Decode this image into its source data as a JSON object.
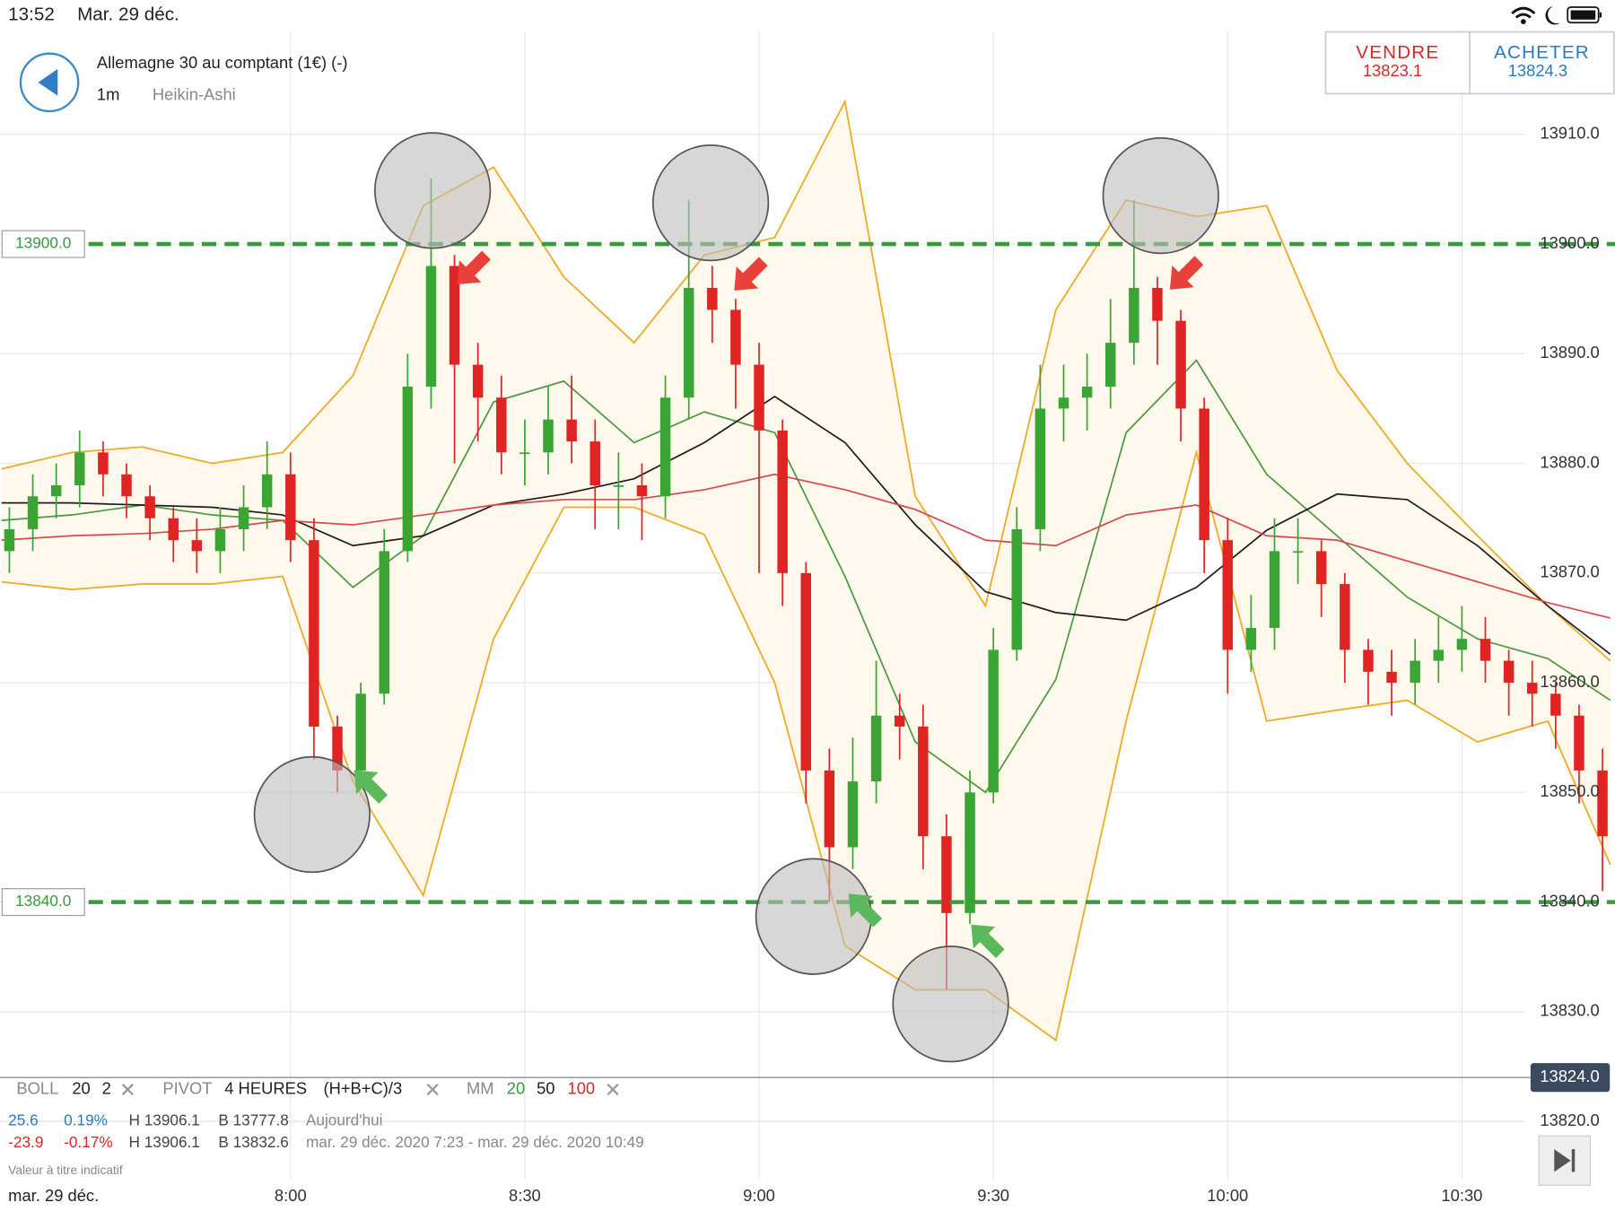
{
  "status": {
    "time": "13:52",
    "date": "Mar. 29 déc."
  },
  "header": {
    "instrument": "Allemagne 30 au comptant (1€) (-)",
    "interval": "1m",
    "chart_style": "Heikin-Ashi"
  },
  "sell": {
    "label": "VENDRE",
    "price": 13823.1
  },
  "buy": {
    "label": "ACHETER",
    "price": 13824.3
  },
  "chart": {
    "type": "candlestick",
    "x": [
      444,
      447,
      450,
      453,
      456,
      459,
      462,
      465,
      468,
      471,
      474,
      477,
      480,
      483,
      486,
      489,
      492,
      495,
      498,
      501,
      504,
      507,
      510,
      513,
      516,
      519,
      522,
      525,
      528,
      531,
      534,
      537,
      540,
      543,
      546,
      549,
      552,
      555,
      558,
      561,
      564,
      567,
      570,
      573,
      576,
      579,
      582,
      585,
      588,
      591,
      594,
      597,
      600,
      603,
      606,
      609,
      612,
      615,
      618,
      621,
      624,
      627,
      630,
      633,
      636,
      639,
      642,
      645,
      648
    ],
    "open": [
      13872,
      13874,
      13877,
      13878,
      13881,
      13879,
      13877,
      13875,
      13873,
      13872,
      13874,
      13876,
      13879,
      13873,
      13856,
      13852,
      13859,
      13872,
      13887,
      13898,
      13889,
      13886,
      13881,
      13881,
      13884,
      13882,
      13878,
      13878,
      13877,
      13886,
      13896,
      13894,
      13889,
      13883,
      13870,
      13852,
      13845,
      13851,
      13857,
      13856,
      13846,
      13839,
      13850,
      13863,
      13874,
      13885,
      13886,
      13887,
      13891,
      13896,
      13893,
      13885,
      13873,
      13863,
      13865,
      13872,
      13872,
      13869,
      13863,
      13861,
      13860,
      13862,
      13863,
      13864,
      13862,
      13860,
      13859,
      13857,
      13852
    ],
    "high": [
      13876,
      13879,
      13880,
      13883,
      13882,
      13880,
      13878,
      13876,
      13875,
      13876,
      13878,
      13882,
      13881,
      13875,
      13857,
      13860,
      13874,
      13890,
      13906,
      13899,
      13891,
      13888,
      13884,
      13887,
      13888,
      13884,
      13881,
      13880,
      13888,
      13904,
      13898,
      13895,
      13891,
      13884,
      13871,
      13854,
      13855,
      13862,
      13859,
      13858,
      13848,
      13852,
      13865,
      13876,
      13889,
      13889,
      13890,
      13895,
      13904,
      13897,
      13894,
      13886,
      13875,
      13868,
      13875,
      13875,
      13873,
      13870,
      13864,
      13863,
      13864,
      13866,
      13867,
      13866,
      13863,
      13862,
      13860,
      13858,
      13854
    ],
    "low": [
      13870,
      13872,
      13875,
      13876,
      13877,
      13875,
      13873,
      13871,
      13870,
      13870,
      13872,
      13874,
      13871,
      13853,
      13850,
      13851,
      13858,
      13871,
      13885,
      13880,
      13882,
      13879,
      13878,
      13879,
      13880,
      13874,
      13874,
      13873,
      13875,
      13884,
      13891,
      13885,
      13870,
      13867,
      13849,
      13840,
      13843,
      13849,
      13853,
      13843,
      13832,
      13838,
      13849,
      13862,
      13872,
      13882,
      13883,
      13885,
      13889,
      13889,
      13882,
      13870,
      13859,
      13861,
      13863,
      13869,
      13866,
      13860,
      13858,
      13857,
      13858,
      13860,
      13861,
      13860,
      13857,
      13856,
      13854,
      13849,
      13841
    ],
    "close": [
      13874,
      13877,
      13878,
      13881,
      13879,
      13877,
      13875,
      13873,
      13872,
      13874,
      13876,
      13879,
      13873,
      13856,
      13852,
      13859,
      13872,
      13887,
      13898,
      13889,
      13886,
      13881,
      13881,
      13884,
      13882,
      13878,
      13878,
      13877,
      13886,
      13896,
      13894,
      13889,
      13883,
      13870,
      13852,
      13845,
      13851,
      13857,
      13856,
      13846,
      13839,
      13850,
      13863,
      13874,
      13885,
      13886,
      13887,
      13891,
      13896,
      13893,
      13885,
      13873,
      13863,
      13865,
      13872,
      13872,
      13869,
      13863,
      13861,
      13860,
      13862,
      13863,
      13864,
      13862,
      13860,
      13859,
      13857,
      13852,
      13846
    ],
    "up_color": "#3aa535",
    "down_color": "#e02424",
    "indicator_x": [
      443,
      452,
      461,
      470,
      479,
      488,
      497,
      506,
      515,
      524,
      533,
      542,
      551,
      560,
      569,
      578,
      587,
      596,
      605,
      614,
      623,
      632,
      641,
      649
    ],
    "bollinger": {
      "color": "#f0ac28",
      "fill": "#fff8ec",
      "upper": [
        13879.5,
        13881,
        13881.5,
        13880,
        13881,
        13888,
        13903.5,
        13907,
        13897,
        13891,
        13899,
        13900.6,
        13913,
        13877,
        13867,
        13894,
        13904,
        13902.5,
        13903.5,
        13888.5,
        13880,
        13873.4,
        13867,
        13862
      ],
      "lower": [
        13869.2,
        13868.5,
        13869,
        13869,
        13869.7,
        13851,
        13840.6,
        13864,
        13876,
        13876,
        13873.5,
        13860,
        13836,
        13832,
        13832,
        13827.4,
        13856.5,
        13881,
        13856.5,
        13857.5,
        13858.4,
        13854.6,
        13856.5,
        13843.4
      ]
    },
    "moving_averages": [
      {
        "color": "#4a9a40",
        "values": [
          13874.8,
          13875.3,
          13876.2,
          13875.3,
          13874.8,
          13868.7,
          13873.4,
          13885.6,
          13887.5,
          13881.9,
          13884.7,
          13882.8,
          13869.7,
          13854.6,
          13850,
          13860.3,
          13882.8,
          13889.4,
          13879,
          13873.4,
          13867.8,
          13864,
          13862.2,
          13858.4
        ]
      },
      {
        "color": "#1e1e1e",
        "values": [
          13876.4,
          13876.4,
          13876.2,
          13876,
          13875.3,
          13872.5,
          13873.4,
          13876.2,
          13877.2,
          13878.6,
          13881.9,
          13886.1,
          13881.9,
          13874.4,
          13868.3,
          13866.4,
          13865.7,
          13868.7,
          13873.9,
          13877.2,
          13876.7,
          13872.5,
          13867,
          13862.6
        ]
      },
      {
        "color": "#d84a4a",
        "values": [
          13873,
          13873.4,
          13873.6,
          13874,
          13874.8,
          13874.4,
          13875.3,
          13876.2,
          13876.7,
          13876.7,
          13877.6,
          13879,
          13877.6,
          13875.8,
          13873,
          13872.5,
          13875.3,
          13876.2,
          13873.4,
          13873,
          13871.1,
          13869.2,
          13867.3,
          13865.9
        ]
      }
    ],
    "xlim": [
      442.8,
      649.6
    ],
    "ylim": [
      13816,
      13920
    ],
    "xticks": [
      {
        "value": 480,
        "label": "8:00"
      },
      {
        "value": 510,
        "label": "8:30"
      },
      {
        "value": 540,
        "label": "9:00"
      },
      {
        "value": 570,
        "label": "9:30"
      },
      {
        "value": 600,
        "label": "10:00"
      },
      {
        "value": 630,
        "label": "10:30"
      }
    ],
    "yticks": [
      {
        "value": 13820,
        "label": "13820.0"
      },
      {
        "value": 13830,
        "label": "13830.0"
      },
      {
        "value": 13840,
        "label": "13840.0"
      },
      {
        "value": 13850,
        "label": "13850.0"
      },
      {
        "value": 13860,
        "label": "13860.0"
      },
      {
        "value": 13870,
        "label": "13870.0"
      },
      {
        "value": 13880,
        "label": "13880.0"
      },
      {
        "value": 13890,
        "label": "13890.0"
      },
      {
        "value": 13900,
        "label": "13900.0"
      },
      {
        "value": 13910,
        "label": "13910.0"
      }
    ],
    "levels": [
      {
        "value": 13900,
        "label": "13900.0"
      },
      {
        "value": 13840,
        "label": "13840.0"
      }
    ],
    "level_color": "#3a9a40",
    "last_price": {
      "value": 13824,
      "label": "13824.0"
    },
    "date_label": "mar. 29 déc."
  },
  "legend": {
    "boll": {
      "name": "BOLL",
      "period": 20,
      "deviation": 2
    },
    "pivot": {
      "name": "PIVOT",
      "period": "4 HEURES",
      "formula": "(H+B+C)/3"
    },
    "mm": {
      "name": "MM",
      "periods": [
        20,
        50,
        100
      ]
    }
  },
  "stats": [
    {
      "change": 25.6,
      "percent": "0.19%",
      "high": "H 13906.1",
      "low": "B 13777.8",
      "range": "Aujourd'hui"
    },
    {
      "change": -23.9,
      "percent": "-0.17%",
      "high": "H 13906.1",
      "low": "B 13832.6",
      "range": "mar. 29 déc. 2020 7:23 - mar. 29 déc. 2020 10:49"
    }
  ],
  "disclaimer": "Valeur à titre indicatif"
}
